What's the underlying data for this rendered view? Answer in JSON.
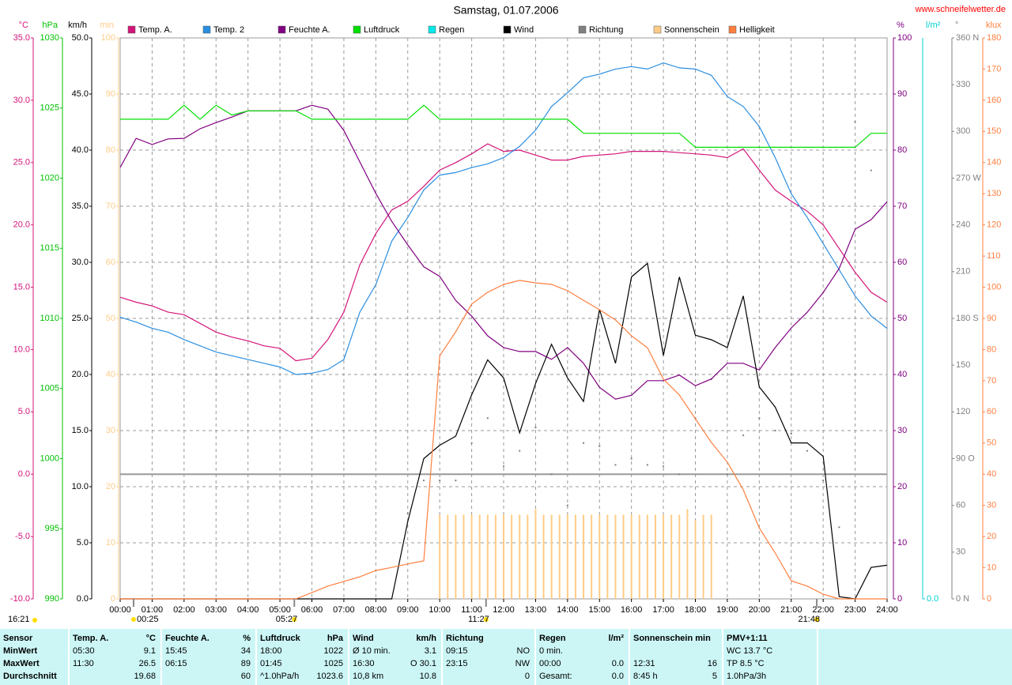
{
  "chart_data": {
    "type": "line",
    "title": "Samstag, 01.07.2006",
    "site": "www.schneifelwetter.de",
    "xlim": [
      0,
      24
    ],
    "xticks": [
      {
        "value": 0,
        "label": "00:00"
      },
      {
        "value": 1,
        "label": "01:00"
      },
      {
        "value": 2,
        "label": "02:00"
      },
      {
        "value": 3,
        "label": "03:00"
      },
      {
        "value": 4,
        "label": "04:00"
      },
      {
        "value": 5,
        "label": "05:00"
      },
      {
        "value": 6,
        "label": "06:00"
      },
      {
        "value": 7,
        "label": "07:00"
      },
      {
        "value": 8,
        "label": "08:00"
      },
      {
        "value": 9,
        "label": "09:00"
      },
      {
        "value": 10,
        "label": "10:00"
      },
      {
        "value": 11,
        "label": "11:00"
      },
      {
        "value": 12,
        "label": "12:00"
      },
      {
        "value": 13,
        "label": "13:00"
      },
      {
        "value": 14,
        "label": "14:00"
      },
      {
        "value": 15,
        "label": "15:00"
      },
      {
        "value": 16,
        "label": "16:00"
      },
      {
        "value": 17,
        "label": "17:00"
      },
      {
        "value": 18,
        "label": "18:00"
      },
      {
        "value": 19,
        "label": "19:00"
      },
      {
        "value": 20,
        "label": "20:00"
      },
      {
        "value": 21,
        "label": "21:00"
      },
      {
        "value": 22,
        "label": "22:00"
      },
      {
        "value": 23,
        "label": "23:00"
      },
      {
        "value": 24,
        "label": "24:00"
      }
    ],
    "grid": true,
    "grid_axis": 2,
    "zero_line": true,
    "axes": [
      {
        "name": "°C",
        "side": "left",
        "color": "#d4147a",
        "lim": [
          -10,
          35
        ],
        "ticks": [
          {
            "value": -10,
            "label": "-10.0"
          },
          {
            "value": -5,
            "label": "-5.0"
          },
          {
            "value": 0,
            "label": "0.0"
          },
          {
            "value": 5,
            "label": "5.0"
          },
          {
            "value": 10,
            "label": "10.0"
          },
          {
            "value": 15,
            "label": "15.0"
          },
          {
            "value": 20,
            "label": "20.0"
          },
          {
            "value": 25,
            "label": "25.0"
          },
          {
            "value": 30,
            "label": "30.0"
          },
          {
            "value": 35,
            "label": "35.0"
          }
        ]
      },
      {
        "name": "hPa",
        "side": "left",
        "color": "#00c000",
        "lim": [
          990,
          1030
        ],
        "ticks": [
          990,
          995,
          1000,
          1005,
          1010,
          1015,
          1020,
          1025,
          1030
        ]
      },
      {
        "name": "km/h",
        "side": "left",
        "color": "#000000",
        "lim": [
          0,
          50
        ],
        "ticks": [
          {
            "value": 0,
            "label": "0.0"
          },
          {
            "value": 5,
            "label": "5.0"
          },
          {
            "value": 10,
            "label": "10.0"
          },
          {
            "value": 15,
            "label": "15.0"
          },
          {
            "value": 20,
            "label": "20.0"
          },
          {
            "value": 25,
            "label": "25.0"
          },
          {
            "value": 30,
            "label": "30.0"
          },
          {
            "value": 35,
            "label": "35.0"
          },
          {
            "value": 40,
            "label": "40.0"
          },
          {
            "value": 45,
            "label": "45.0"
          },
          {
            "value": 50,
            "label": "50.0"
          }
        ]
      },
      {
        "name": "min",
        "side": "left",
        "color": "#ffcc88",
        "lim": [
          0,
          100
        ],
        "ticks": [
          0,
          10,
          20,
          30,
          40,
          50,
          60,
          70,
          80,
          90,
          100
        ]
      },
      {
        "name": "%",
        "side": "right",
        "color": "#800080",
        "lim": [
          0,
          100
        ],
        "ticks": [
          0,
          10,
          20,
          30,
          40,
          50,
          60,
          70,
          80,
          90,
          100
        ]
      },
      {
        "name": "l/m²",
        "side": "right",
        "color": "#00d0d0",
        "ticks": [
          {
            "value": 0,
            "label": "0.0"
          }
        ]
      },
      {
        "name": "°",
        "side": "right",
        "color": "#808080",
        "lim": [
          0,
          360
        ],
        "ticks": [
          {
            "value": 0,
            "label": "0 N"
          },
          30,
          60,
          {
            "value": 90,
            "label": "90 O"
          },
          120,
          150,
          {
            "value": 180,
            "label": "180 S"
          },
          210,
          240,
          {
            "value": 270,
            "label": "270 W"
          },
          300,
          330,
          {
            "value": 360,
            "label": "360 N"
          }
        ]
      },
      {
        "name": "klux",
        "side": "right",
        "color": "#ff7f3f",
        "lim": [
          0,
          180
        ],
        "ticks": [
          0,
          10,
          20,
          30,
          40,
          50,
          60,
          70,
          80,
          90,
          100,
          110,
          120,
          130,
          140,
          150,
          160,
          170,
          180
        ]
      }
    ],
    "x": [
      0,
      0.5,
      1,
      1.5,
      2,
      2.5,
      3,
      3.5,
      4,
      4.5,
      5,
      5.5,
      6,
      6.5,
      7,
      7.5,
      8,
      8.5,
      9,
      9.5,
      10,
      10.5,
      11,
      11.5,
      12,
      12.5,
      13,
      13.5,
      14,
      14.5,
      15,
      15.5,
      16,
      16.5,
      17,
      17.5,
      18,
      18.5,
      19,
      19.5,
      20,
      20.5,
      21,
      21.5,
      22,
      22.5,
      23,
      23.5,
      24
    ],
    "series": [
      {
        "name": "Temp. A.",
        "color": "#d4147a",
        "style": "line",
        "axis": 0,
        "values": [
          14.2,
          13.8,
          13.5,
          13.0,
          12.8,
          12.1,
          11.4,
          11.0,
          10.7,
          10.3,
          10.1,
          9.1,
          9.3,
          10.8,
          13.0,
          16.8,
          19.3,
          21.2,
          21.9,
          23.1,
          24.4,
          25.0,
          25.7,
          26.5,
          25.9,
          26.0,
          25.6,
          25.2,
          25.2,
          25.5,
          25.6,
          25.7,
          25.9,
          25.9,
          25.9,
          25.8,
          25.7,
          25.6,
          25.4,
          26.1,
          24.4,
          22.8,
          21.9,
          21.1,
          20.0,
          18.1,
          16.2,
          14.6,
          13.8
        ]
      },
      {
        "name": "Temp. 2",
        "color": "#2a8ee0",
        "style": "line",
        "axis": 0,
        "values": [
          12.6,
          12.2,
          11.7,
          11.4,
          10.8,
          10.3,
          9.8,
          9.5,
          9.2,
          8.9,
          8.6,
          8.0,
          8.1,
          8.4,
          9.2,
          13.0,
          15.2,
          18.7,
          20.6,
          22.8,
          24.0,
          24.2,
          24.6,
          24.9,
          25.4,
          26.3,
          27.6,
          29.5,
          30.6,
          31.8,
          32.1,
          32.5,
          32.7,
          32.5,
          33.0,
          32.6,
          32.5,
          32.0,
          30.3,
          29.5,
          27.9,
          25.4,
          22.5,
          20.6,
          18.5,
          16.4,
          14.3,
          12.7,
          11.7
        ]
      },
      {
        "name": "Feuchte A.",
        "color": "#800080",
        "style": "line",
        "axis": 4,
        "values": [
          76.9,
          82.1,
          81,
          82,
          82.1,
          83.8,
          84.9,
          85.9,
          87,
          87,
          87,
          87,
          88,
          87.3,
          83.5,
          77.9,
          72.3,
          67.3,
          63.1,
          59.2,
          57.5,
          53.2,
          50.4,
          46.9,
          44.8,
          44.1,
          44.1,
          42.7,
          44.8,
          42.0,
          37.7,
          35.6,
          36.3,
          38.9,
          38.9,
          39.9,
          38.0,
          39.2,
          42.0,
          42.0,
          40.8,
          44.8,
          48.3,
          51.1,
          54.6,
          58.9,
          65.9,
          67.6,
          70.8
        ]
      },
      {
        "name": "Luftdruck",
        "color": "#00e000",
        "style": "line",
        "axis": 1,
        "values": [
          1024.2,
          1024.2,
          1024.2,
          1024.2,
          1025.2,
          1024.2,
          1025.2,
          1024.5,
          1024.8,
          1024.8,
          1024.8,
          1024.8,
          1024.2,
          1024.2,
          1024.2,
          1024.2,
          1024.2,
          1024.2,
          1024.2,
          1025.2,
          1024.2,
          1024.2,
          1024.2,
          1024.2,
          1024.2,
          1024.2,
          1024.2,
          1024.2,
          1024.2,
          1023.2,
          1023.2,
          1023.2,
          1023.2,
          1023.2,
          1023.2,
          1023.2,
          1022.2,
          1022.2,
          1022.2,
          1022.2,
          1022.2,
          1022.2,
          1022.2,
          1022.2,
          1022.2,
          1022.2,
          1022.2,
          1023.2,
          1023.2
        ]
      },
      {
        "name": "Regen",
        "color": "#00e8e8",
        "style": "none",
        "axis": 5
      },
      {
        "name": "Wind",
        "color": "#000000",
        "style": "line",
        "axis": 2,
        "values": [
          0,
          0,
          0,
          0,
          0,
          0,
          0,
          0,
          0,
          0,
          0,
          0,
          0,
          0,
          0,
          0,
          0,
          0,
          6.9,
          12.5,
          13.7,
          14.5,
          18.2,
          21.3,
          19.7,
          14.8,
          19.2,
          22.7,
          19.7,
          17.6,
          25.8,
          21.0,
          28.7,
          29.9,
          21.7,
          28.7,
          23.5,
          23.1,
          22.4,
          27.0,
          18.9,
          17.1,
          13.9,
          13.9,
          12.7,
          0.2,
          0,
          2.8,
          3.0
        ]
      },
      {
        "name": "Richtung",
        "color": "#808080",
        "style": "dots",
        "axis": 6,
        "values": [
          null,
          null,
          null,
          null,
          null,
          null,
          null,
          null,
          null,
          null,
          null,
          null,
          null,
          null,
          null,
          null,
          null,
          null,
          55,
          76,
          76,
          76,
          100,
          116,
          85,
          95,
          110,
          80,
          60,
          100,
          98,
          86,
          90,
          86,
          85,
          80,
          116,
          141,
          80,
          105,
          116,
          108,
          106,
          95,
          76,
          46,
          306,
          275,
          null
        ]
      },
      {
        "name": "Sonnenschein",
        "color": "#ffcc88",
        "style": "bars",
        "axis": 3,
        "x": [
          10,
          10.25,
          10.5,
          10.75,
          11,
          11.25,
          11.5,
          11.75,
          12,
          12.25,
          12.5,
          12.75,
          13,
          13.25,
          13.5,
          13.75,
          14,
          14.25,
          14.5,
          14.75,
          15,
          15.25,
          15.5,
          15.75,
          16,
          16.25,
          16.5,
          16.75,
          17,
          17.25,
          17.5,
          17.75,
          18,
          18.25,
          18.5
        ],
        "values": [
          15,
          15,
          15,
          15,
          15,
          15,
          15,
          15,
          15,
          15,
          15,
          15,
          16,
          15,
          15,
          15,
          15,
          15,
          15,
          15,
          15,
          15,
          15,
          15,
          15,
          15,
          15,
          15,
          15,
          15,
          15,
          16,
          14,
          15,
          15
        ]
      },
      {
        "name": "Helligkeit",
        "color": "#ff7f3f",
        "style": "line",
        "axis": 7,
        "values": [
          0,
          0,
          0,
          0,
          0,
          0,
          0,
          0,
          0,
          0,
          0,
          0,
          2,
          4.1,
          5.6,
          7.1,
          9.1,
          10.1,
          11.2,
          12.2,
          78,
          85.7,
          94.6,
          98.4,
          100.9,
          102.2,
          101.4,
          100.9,
          98.9,
          95.8,
          92.8,
          89.5,
          84.4,
          80.6,
          70.5,
          65.4,
          57.8,
          50.2,
          43.9,
          35.0,
          22.8,
          14.7,
          5.8,
          4.1,
          1.5,
          0,
          0,
          0,
          0
        ]
      }
    ],
    "markers": [
      {
        "label": "00:25",
        "x": 0.42
      },
      {
        "label": "05:27",
        "x": 5.45
      },
      {
        "label": "11:27",
        "x": 11.45
      },
      {
        "label": "21:48",
        "x": 21.8
      }
    ],
    "corner_note": "16:21"
  },
  "table": {
    "row_labels": [
      "Sensor",
      "MinWert",
      "MaxWert",
      "Durchschnitt"
    ],
    "columns": [
      {
        "name": "Temp. A.",
        "unit": "°C",
        "cells": [
          {
            "left": "05:30",
            "right": "9.1"
          },
          {
            "left": "11:30",
            "right": "26.5"
          },
          {
            "right": "19.68"
          }
        ]
      },
      {
        "name": "Feuchte A.",
        "unit": "%",
        "cells": [
          {
            "left": "15:45",
            "right": "34"
          },
          {
            "left": "06:15",
            "right": "89"
          },
          {
            "right": "60"
          }
        ]
      },
      {
        "name": "Luftdruck",
        "unit": "hPa",
        "cells": [
          {
            "left": "18:00",
            "right": "1022"
          },
          {
            "left": "01:45",
            "right": "1025"
          },
          {
            "left": "^1.0hPa/h",
            "right": "1023.6"
          }
        ]
      },
      {
        "name": "Wind",
        "unit": "km/h",
        "cells": [
          {
            "left": "Ø 10 min.",
            "right": "3.1"
          },
          {
            "left": "16:30",
            "right": "O 30.1"
          },
          {
            "left": "10,8 km",
            "right": "10.8"
          }
        ]
      },
      {
        "name": "Richtung",
        "cells": [
          {
            "left": "09:15",
            "right": "NO"
          },
          {
            "left": "23:15",
            "right": "NW"
          },
          {
            "right": "0"
          }
        ]
      },
      {
        "name": "Regen",
        "unit": "l/m²",
        "cells": [
          {
            "left": "0 min."
          },
          {
            "left": "00:00",
            "right": "0.0"
          },
          {
            "left": "Gesamt:",
            "right": "0.0"
          }
        ]
      },
      {
        "name": "Sonnenschein min",
        "cells": [
          {},
          {
            "left": "12:31",
            "right": "16"
          },
          {
            "left": "8:45 h",
            "right": "5"
          }
        ]
      },
      {
        "name": "PMV+1:11",
        "cells": [
          {
            "left": "WC 13.7 °C"
          },
          {
            "left": "TP 8.5 °C"
          },
          {
            "left": "1.0hPa/3h"
          }
        ]
      }
    ]
  }
}
